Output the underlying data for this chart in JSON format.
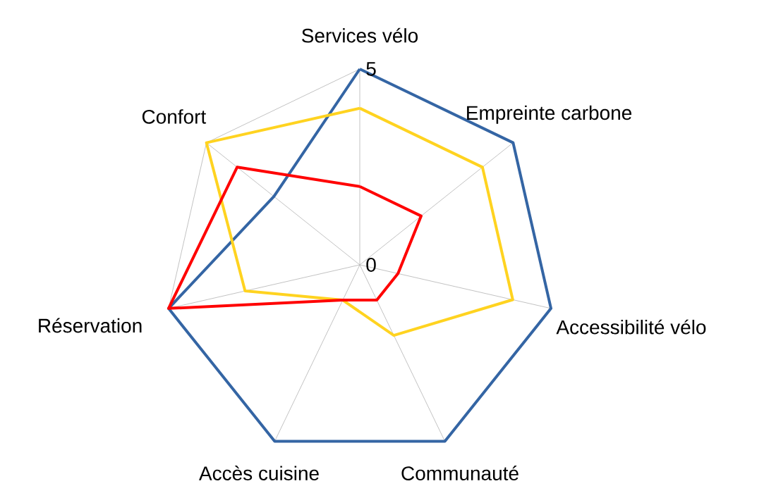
{
  "chart_data": {
    "type": "radar",
    "categories": [
      "Services vélo",
      "Empreinte carbone",
      "Accessibilité vélo",
      "Communauté",
      "Accès cuisine",
      "Réservation",
      "Confort"
    ],
    "series": [
      {
        "color": "#3465a4",
        "values": [
          5,
          5,
          5,
          5,
          5,
          5,
          2.8
        ]
      },
      {
        "color": "#ffd320",
        "values": [
          4,
          4,
          4,
          2,
          1,
          3,
          5
        ]
      },
      {
        "color": "#ff0000",
        "values": [
          2,
          2,
          1,
          1,
          1,
          5,
          4
        ]
      }
    ],
    "ylim": [
      0,
      5
    ],
    "yticks": [
      0,
      5
    ],
    "grid": true,
    "legend": false,
    "marker": "none",
    "line_style": "solid"
  }
}
